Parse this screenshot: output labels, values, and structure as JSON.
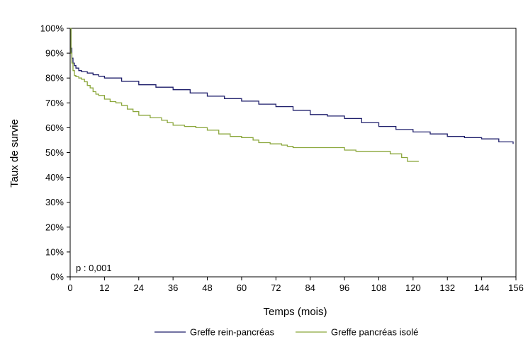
{
  "chart_data": {
    "type": "line",
    "title": "",
    "xlabel": "Temps (mois)",
    "ylabel": "Taux de survie",
    "xlim": [
      0,
      156
    ],
    "ylim": [
      0,
      100
    ],
    "xticks": [
      0,
      12,
      24,
      36,
      48,
      60,
      72,
      84,
      96,
      108,
      120,
      132,
      144,
      156
    ],
    "yticks": [
      0,
      10,
      20,
      30,
      40,
      50,
      60,
      70,
      80,
      90,
      100
    ],
    "ytick_labels": [
      "0%",
      "10%",
      "20%",
      "30%",
      "40%",
      "50%",
      "60%",
      "70%",
      "80%",
      "90%",
      "100%"
    ],
    "grid": false,
    "legend_position": "bottom",
    "annotation": "p : 0,001",
    "series": [
      {
        "name": "Greffe rein-pancréas",
        "color": "#1f1f6b",
        "x": [
          0,
          0.3,
          0.6,
          1,
          1.5,
          2,
          3,
          4,
          6,
          8,
          10,
          12,
          18,
          24,
          30,
          36,
          42,
          48,
          54,
          60,
          66,
          72,
          78,
          84,
          90,
          96,
          102,
          108,
          114,
          120,
          126,
          132,
          138,
          144,
          150,
          155
        ],
        "y": [
          100,
          92,
          88,
          86,
          85,
          84,
          83,
          82.5,
          82,
          81.3,
          80.7,
          80,
          78.7,
          77.3,
          76.3,
          75.3,
          74,
          72.7,
          71.7,
          70.7,
          69.5,
          68.5,
          67,
          65.3,
          64.7,
          63.7,
          62,
          60.5,
          59.3,
          58.3,
          57.5,
          56.5,
          56,
          55.5,
          54.3,
          53.5
        ]
      },
      {
        "name": "Greffe pancréas isolé",
        "color": "#8aa63a",
        "x": [
          0,
          0.3,
          0.6,
          1,
          1.5,
          2,
          3,
          4,
          5,
          6,
          7,
          8,
          9,
          10,
          12,
          14,
          16,
          18,
          20,
          22,
          24,
          28,
          32,
          34,
          36,
          40,
          44,
          48,
          52,
          56,
          60,
          64,
          66,
          70,
          72,
          74,
          76,
          78,
          80,
          84,
          88,
          92,
          95,
          96,
          100,
          104,
          108,
          112,
          116,
          118,
          122
        ],
        "y": [
          100,
          90,
          86,
          83,
          81,
          80.5,
          80,
          79.5,
          78.5,
          77,
          76,
          74.5,
          73.5,
          73,
          71.5,
          70.5,
          70,
          69,
          67.5,
          66.5,
          65,
          64,
          63,
          62,
          61,
          60.5,
          60,
          59,
          57.5,
          56.5,
          56,
          55,
          54,
          53.5,
          53.5,
          53,
          52.5,
          52,
          52,
          52,
          52,
          52,
          52,
          51,
          50.5,
          50.5,
          50.5,
          49.5,
          48,
          46.5,
          46.5
        ]
      }
    ]
  }
}
